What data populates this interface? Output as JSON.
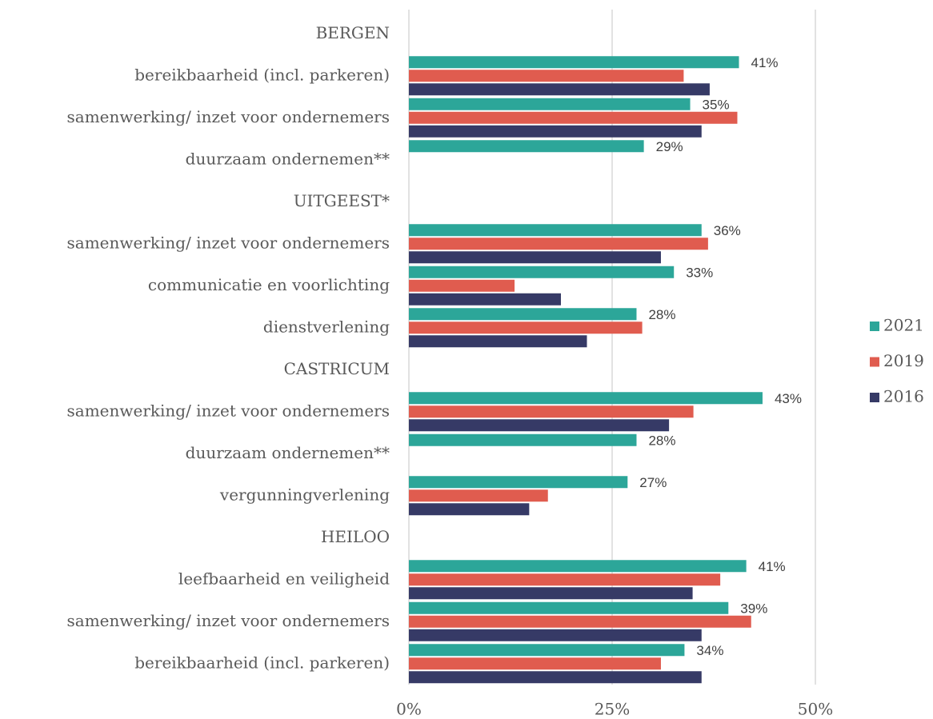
{
  "chart_data": {
    "type": "bar",
    "orientation": "horizontal",
    "categories": [
      "BERGEN",
      "bereikbaarheid (incl. parkeren)",
      "samenwerking/ inzet voor ondernemers",
      "duurzaam ondernemen**",
      "UITGEEST*",
      "samenwerking/ inzet voor ondernemers",
      "communicatie en voorlichting",
      "dienstverlening",
      "CASTRICUM",
      "samenwerking/ inzet voor ondernemers",
      "duurzaam ondernemen**",
      "vergunningverlening",
      "HEILOO",
      "leefbaarheid en veiligheid",
      "samenwerking/ inzet voor ondernemers",
      "bereikbaarheid (incl. parkeren)"
    ],
    "series": [
      {
        "name": "2021",
        "color": "#2ca699",
        "values": [
          null,
          40.6,
          34.6,
          28.9,
          null,
          36,
          32.6,
          28,
          null,
          43.5,
          28,
          26.9,
          null,
          41.5,
          39.3,
          33.9
        ],
        "value_labels": [
          null,
          "41%",
          "35%",
          "29%",
          null,
          "36%",
          "33%",
          "28%",
          null,
          "43%",
          "28%",
          "27%",
          null,
          "41%",
          "39%",
          "34%"
        ]
      },
      {
        "name": "2019",
        "color": "#e05c4f",
        "values": [
          null,
          33.8,
          40.4,
          null,
          null,
          36.8,
          13,
          28.7,
          null,
          35,
          null,
          17.1,
          null,
          38.3,
          42.1,
          31
        ]
      },
      {
        "name": "2016",
        "color": "#363a66",
        "values": [
          null,
          37,
          36,
          null,
          null,
          31,
          18.7,
          21.9,
          null,
          32,
          null,
          14.8,
          null,
          34.9,
          36,
          36
        ]
      }
    ],
    "xlim": [
      0,
      50
    ],
    "xticks": [
      {
        "value": 0,
        "label": "0%"
      },
      {
        "value": 25,
        "label": "25%"
      },
      {
        "value": 50,
        "label": "50%"
      }
    ],
    "grid": true,
    "legend": "right"
  }
}
